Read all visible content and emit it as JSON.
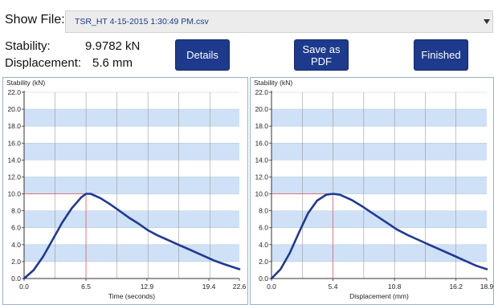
{
  "header": {
    "show_file_label": "Show File:",
    "file_value": "TSR_HT 4-15-2015 1:30:49 PM.csv",
    "dropdown_icon": "triangle-down-icon"
  },
  "readouts": {
    "stability_label": "Stability:",
    "stability_value": "9.9782 kN",
    "displacement_label": "Displacement:",
    "displacement_value": "5.6 mm"
  },
  "buttons": {
    "details": "Details",
    "save_pdf_line1": "Save as",
    "save_pdf_line2": "PDF",
    "finished": "Finished"
  },
  "colors": {
    "button": "#1e3a8c",
    "curve": "#1f3a93",
    "band": "#cfe1f7",
    "peak_marker": "#e06666"
  },
  "chart_data": [
    {
      "type": "line",
      "title": "Stability (kN)",
      "xlabel": "Time (seconds)",
      "ylabel": "Stability (kN)",
      "xlim": [
        0,
        22.6
      ],
      "ylim": [
        0,
        22
      ],
      "x_ticks": [
        "0.0",
        "6.5",
        "12.9",
        "19.4",
        "22.6"
      ],
      "x_tick_values": [
        0,
        6.5,
        12.9,
        19.4,
        22.6
      ],
      "y_ticks": [
        "0.0",
        "2.0",
        "4.0",
        "6.0",
        "8.0",
        "10.0",
        "12.0",
        "14.0",
        "16.0",
        "18.0",
        "20.0",
        "22.0"
      ],
      "peak": [
        6.5,
        10.0
      ],
      "series": [
        {
          "x": [
            0,
            1,
            2,
            3,
            4,
            5,
            6,
            6.5,
            7,
            8,
            9,
            10,
            11,
            12,
            13,
            14,
            15,
            16,
            17,
            18,
            19,
            20,
            21,
            22.6
          ],
          "values": [
            0,
            1.0,
            2.6,
            4.6,
            6.6,
            8.3,
            9.6,
            10.0,
            10.0,
            9.5,
            8.8,
            8.0,
            7.2,
            6.5,
            5.7,
            5.1,
            4.6,
            4.1,
            3.6,
            3.1,
            2.6,
            2.1,
            1.7,
            1.1
          ]
        }
      ]
    },
    {
      "type": "line",
      "title": "Stability (kN)",
      "xlabel": "Displacement (mm)",
      "ylabel": "Stability (kN)",
      "xlim": [
        0,
        18.9
      ],
      "ylim": [
        0,
        22
      ],
      "x_ticks": [
        "0.0",
        "5.4",
        "10.8",
        "16.2",
        "18.9"
      ],
      "x_tick_values": [
        0,
        5.4,
        10.8,
        16.2,
        18.9
      ],
      "y_ticks": [
        "0.0",
        "2.0",
        "4.0",
        "6.0",
        "8.0",
        "10.0",
        "12.0",
        "14.0",
        "16.0",
        "18.0",
        "20.0",
        "22.0"
      ],
      "peak": [
        5.4,
        10.0
      ],
      "series": [
        {
          "x": [
            0,
            0.8,
            1.6,
            2.4,
            3.2,
            4.0,
            4.8,
            5.4,
            6.0,
            7.0,
            8.0,
            9.0,
            10.0,
            11.0,
            12.0,
            13.0,
            14.0,
            15.0,
            16.0,
            17.0,
            18.0,
            18.9
          ],
          "values": [
            0,
            1.1,
            3.0,
            5.4,
            7.7,
            9.2,
            9.9,
            10.0,
            9.9,
            9.3,
            8.5,
            7.6,
            6.7,
            5.8,
            5.1,
            4.5,
            3.9,
            3.3,
            2.7,
            2.1,
            1.5,
            1.1
          ]
        }
      ]
    }
  ]
}
